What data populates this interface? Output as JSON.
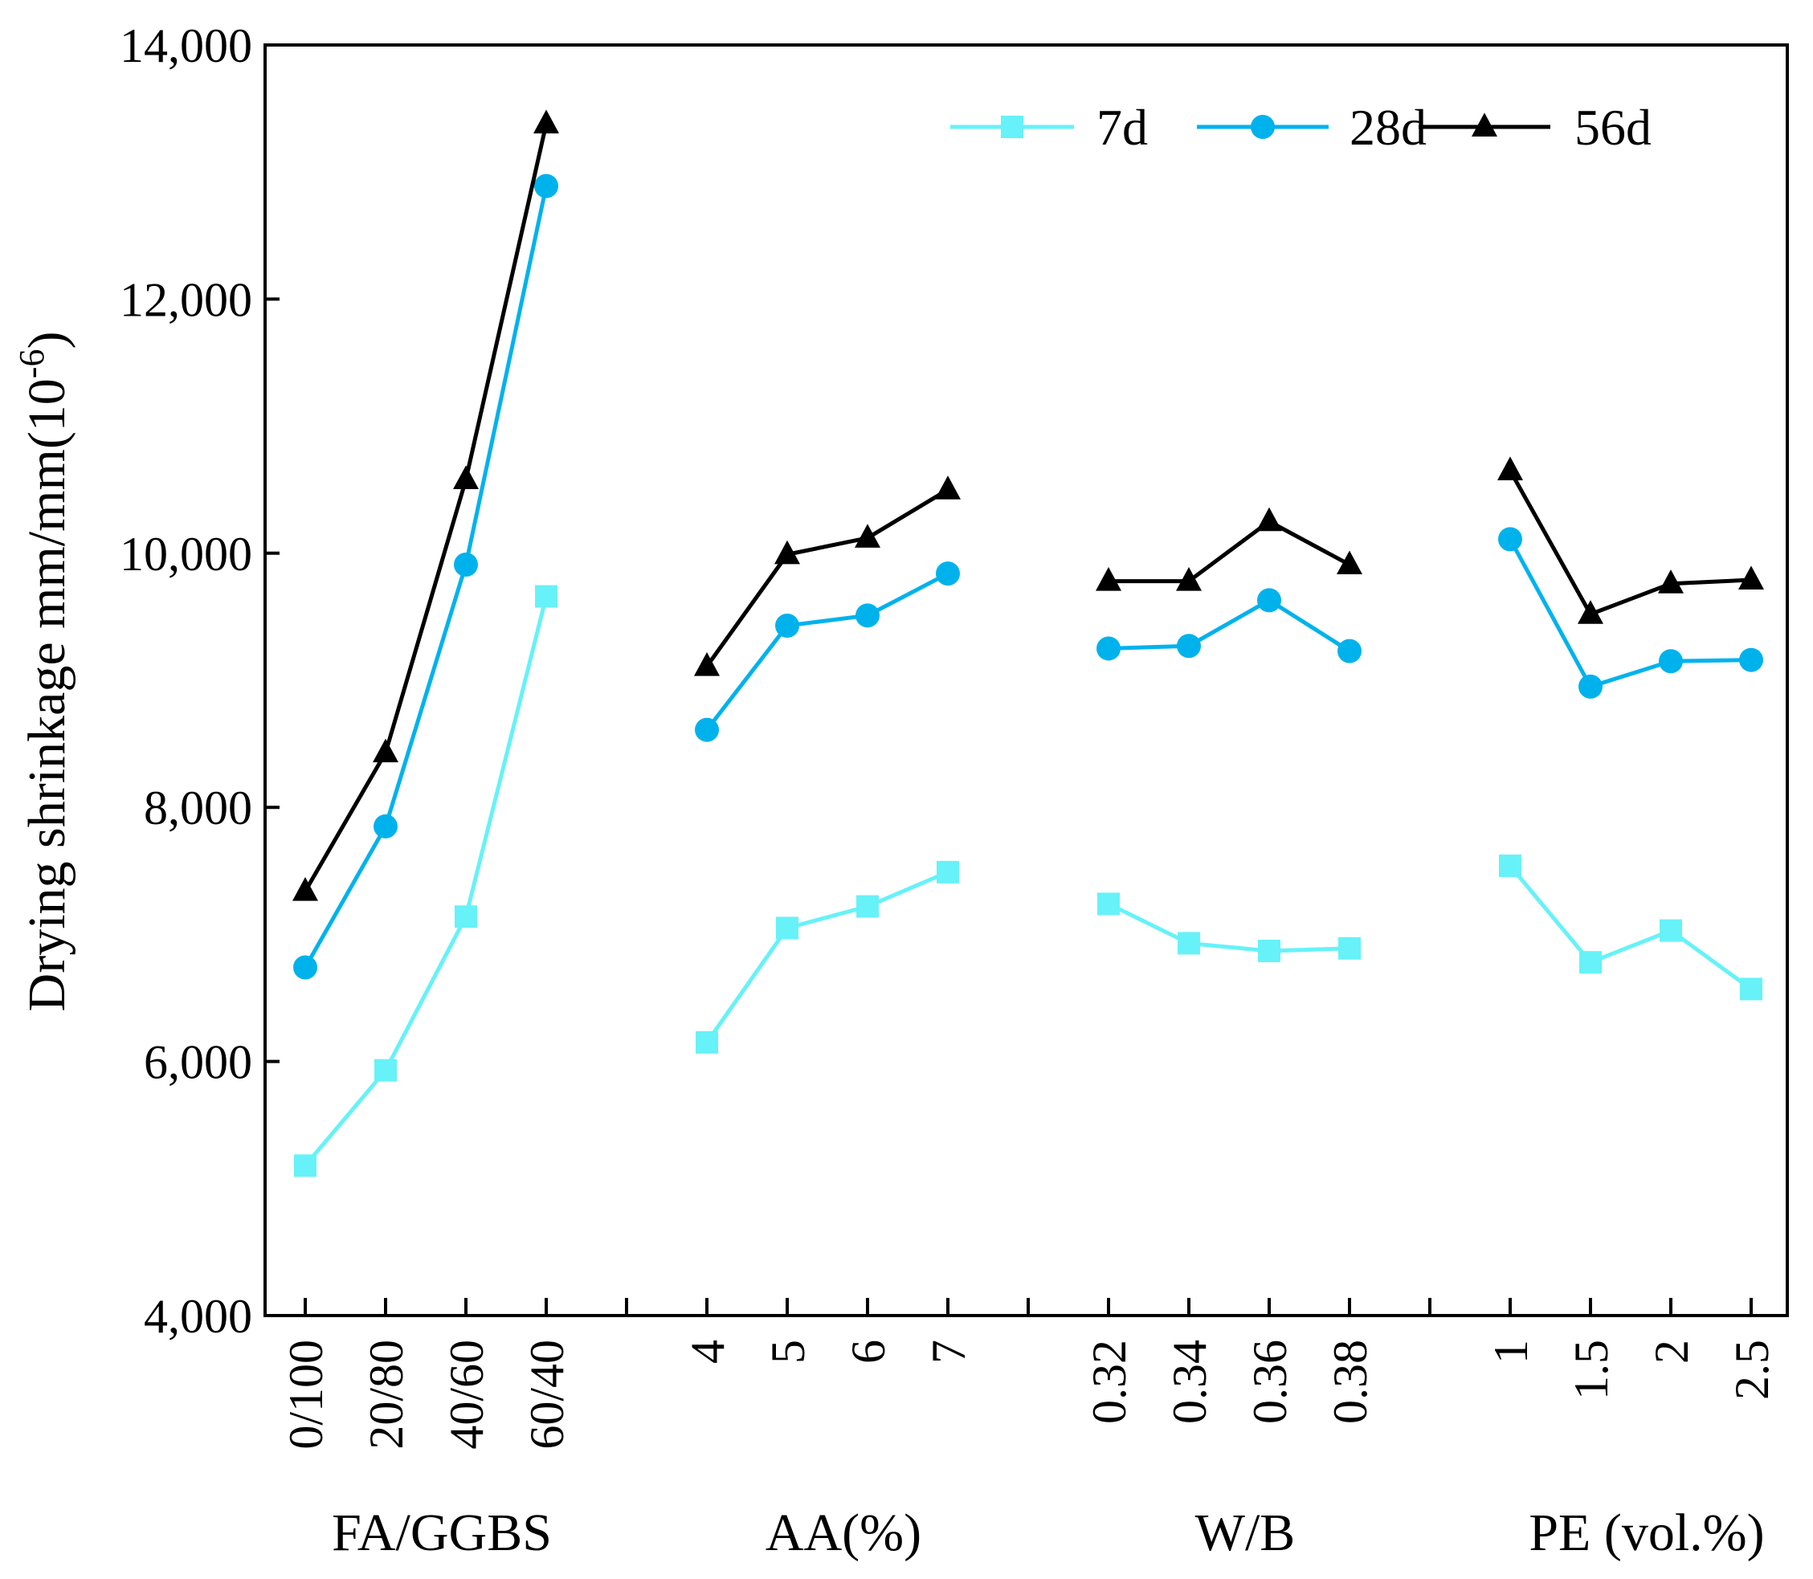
{
  "chart_data": {
    "type": "line",
    "ylabel": "Drying shrinkage mm/mm(10",
    "ylabel_sup": "-6",
    "ylabel_close": ")",
    "ylim": [
      4000,
      14000
    ],
    "yticks": [
      4000,
      6000,
      8000,
      10000,
      12000,
      14000
    ],
    "ytick_labels": [
      "4,000",
      "6,000",
      "8,000",
      "10,000",
      "12,000",
      "14,000"
    ],
    "grid": false,
    "legend_position": "top-right",
    "colors": {
      "7d": "#66f2f8",
      "28d": "#00b2ec",
      "56d": "#000000"
    },
    "series": [
      {
        "name": "7d",
        "marker": "square",
        "color": "#66f2f8"
      },
      {
        "name": "28d",
        "marker": "circle",
        "color": "#00b2ec"
      },
      {
        "name": "56d",
        "marker": "triangle",
        "color": "#000000"
      }
    ],
    "groups": [
      {
        "label": "FA/GGBS",
        "categories": [
          "0/100",
          "20/80",
          "40/60",
          "60/40"
        ],
        "values": {
          "7d": [
            5180,
            5930,
            7140,
            9660
          ],
          "28d": [
            6740,
            7850,
            9910,
            12890
          ],
          "56d": [
            7340,
            8430,
            10580,
            13380
          ]
        }
      },
      {
        "label": "AA(%)",
        "categories": [
          "4",
          "5",
          "6",
          "7"
        ],
        "values": {
          "7d": [
            6150,
            7050,
            7220,
            7490
          ],
          "28d": [
            8610,
            9430,
            9510,
            9840
          ],
          "56d": [
            9110,
            9990,
            10120,
            10500
          ]
        }
      },
      {
        "label": "W/B",
        "categories": [
          "0.32",
          "0.34",
          "0.36",
          "0.38"
        ],
        "values": {
          "7d": [
            7240,
            6930,
            6870,
            6890
          ],
          "28d": [
            9250,
            9270,
            9630,
            9230
          ],
          "56d": [
            9780,
            9780,
            10250,
            9910
          ]
        }
      },
      {
        "label": "PE (vol.%)",
        "categories": [
          "1",
          "1.5",
          "2",
          "2.5"
        ],
        "values": {
          "7d": [
            7540,
            6780,
            7030,
            6570
          ],
          "28d": [
            10110,
            8950,
            9150,
            9160
          ],
          "56d": [
            10650,
            9520,
            9760,
            9790
          ]
        }
      }
    ]
  }
}
